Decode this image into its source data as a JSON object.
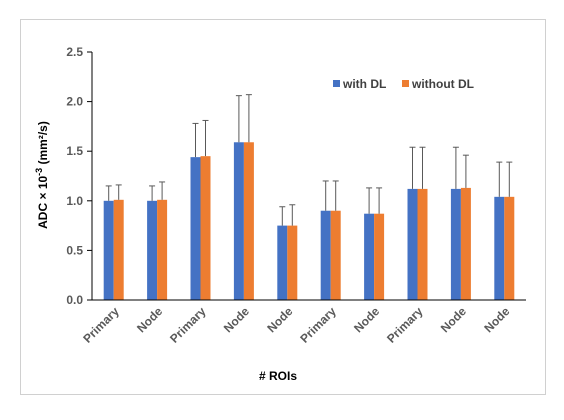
{
  "chart_data": {
    "type": "bar",
    "title": "",
    "xlabel": "# ROIs",
    "ylabel": "ADC × 10",
    "ylabel_exponent": "-3",
    "ylabel_unit": " (mm²/s)",
    "ylim": [
      0,
      2.5
    ],
    "yticks": [
      "0.0",
      "0.5",
      "1.0",
      "1.5",
      "2.0",
      "2.5"
    ],
    "ytick_values": [
      0,
      0.5,
      1.0,
      1.5,
      2.0,
      2.5
    ],
    "grid": false,
    "error_bars": true,
    "legend_position": "top-right",
    "categories": [
      "Primary",
      "Node",
      "Primary",
      "Node",
      "Node",
      "Primary",
      "Node",
      "Primary",
      "Node",
      "Node"
    ],
    "series": [
      {
        "name": "with DL",
        "color": "#4472C4",
        "values": [
          1.0,
          1.0,
          1.44,
          1.59,
          0.75,
          0.9,
          0.87,
          1.12,
          1.12,
          1.04
        ],
        "errors": [
          0.15,
          0.15,
          0.34,
          0.47,
          0.19,
          0.3,
          0.26,
          0.42,
          0.42,
          0.35
        ]
      },
      {
        "name": "without DL",
        "color": "#ED7D31",
        "values": [
          1.01,
          1.01,
          1.45,
          1.59,
          0.75,
          0.9,
          0.87,
          1.12,
          1.13,
          1.04
        ],
        "errors": [
          0.15,
          0.18,
          0.36,
          0.48,
          0.21,
          0.3,
          0.26,
          0.42,
          0.33,
          0.35
        ]
      }
    ]
  }
}
